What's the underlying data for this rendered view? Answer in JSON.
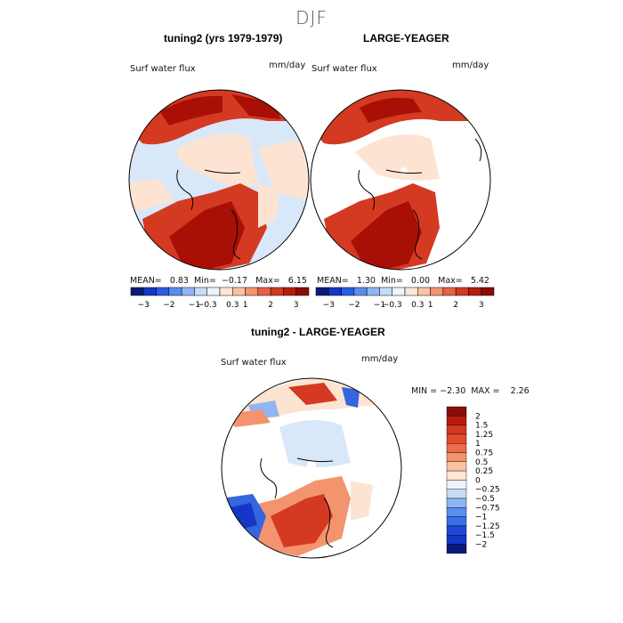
{
  "main_title": "DJF",
  "panels": [
    {
      "title": "tuning2 (yrs 1979-1979)",
      "var_label": "Surf water flux",
      "units": "mm/day",
      "stats": {
        "mean_label": "MEAN=",
        "mean": "0.83",
        "min_label": "Min=",
        "min": "−0.17",
        "max_label": "Max=",
        "max": "6.15"
      }
    },
    {
      "title": "LARGE-YEAGER",
      "var_label": "Surf water flux",
      "units": "mm/day",
      "stats": {
        "mean_label": "MEAN=",
        "mean": "1.30",
        "min_label": "Min=",
        "min": "0.00",
        "max_label": "Max=",
        "max": "5.42"
      }
    }
  ],
  "colorbar_ticks": [
    "−3",
    "−2",
    "−1",
    "−0.3",
    "0.3",
    "1",
    "2",
    "3"
  ],
  "colorbar_colors": [
    "#0a1a7a",
    "#1437c8",
    "#2a5ee8",
    "#5a8df0",
    "#8fb5f2",
    "#c7dcf6",
    "#eef4fc",
    "#fde6d6",
    "#f9c2a3",
    "#f3946f",
    "#e76145",
    "#d23a20",
    "#b71c0c",
    "#8a0c04"
  ],
  "diff": {
    "title": "tuning2 - LARGE-YEAGER",
    "var_label": "Surf water flux",
    "units": "mm/day",
    "min_label": "MIN =",
    "min": "−2.30",
    "max_label": "MAX =",
    "max": "2.26",
    "legend_labels": [
      "2",
      "1.5",
      "1.25",
      "1",
      "0.75",
      "0.5",
      "0.25",
      "0",
      "−0.25",
      "−0.5",
      "−0.75",
      "−1",
      "−1.25",
      "−1.5",
      "−2"
    ],
    "legend_colors": [
      "#8a0c04",
      "#b71c0c",
      "#d23a20",
      "#e34a2a",
      "#ee6a48",
      "#f3946f",
      "#f9c2a3",
      "#fde6d6",
      "#eef4fc",
      "#c7dcf6",
      "#8fb5f2",
      "#5a8df0",
      "#3a6ee8",
      "#1f46d6",
      "#1437c8",
      "#0a1a7a"
    ]
  },
  "palette": {
    "ocean_light": "#d9e8f8",
    "land_peach": "#fde4d2",
    "dark_red": "#a81006",
    "red": "#d43a22",
    "blue": "#3566df"
  }
}
